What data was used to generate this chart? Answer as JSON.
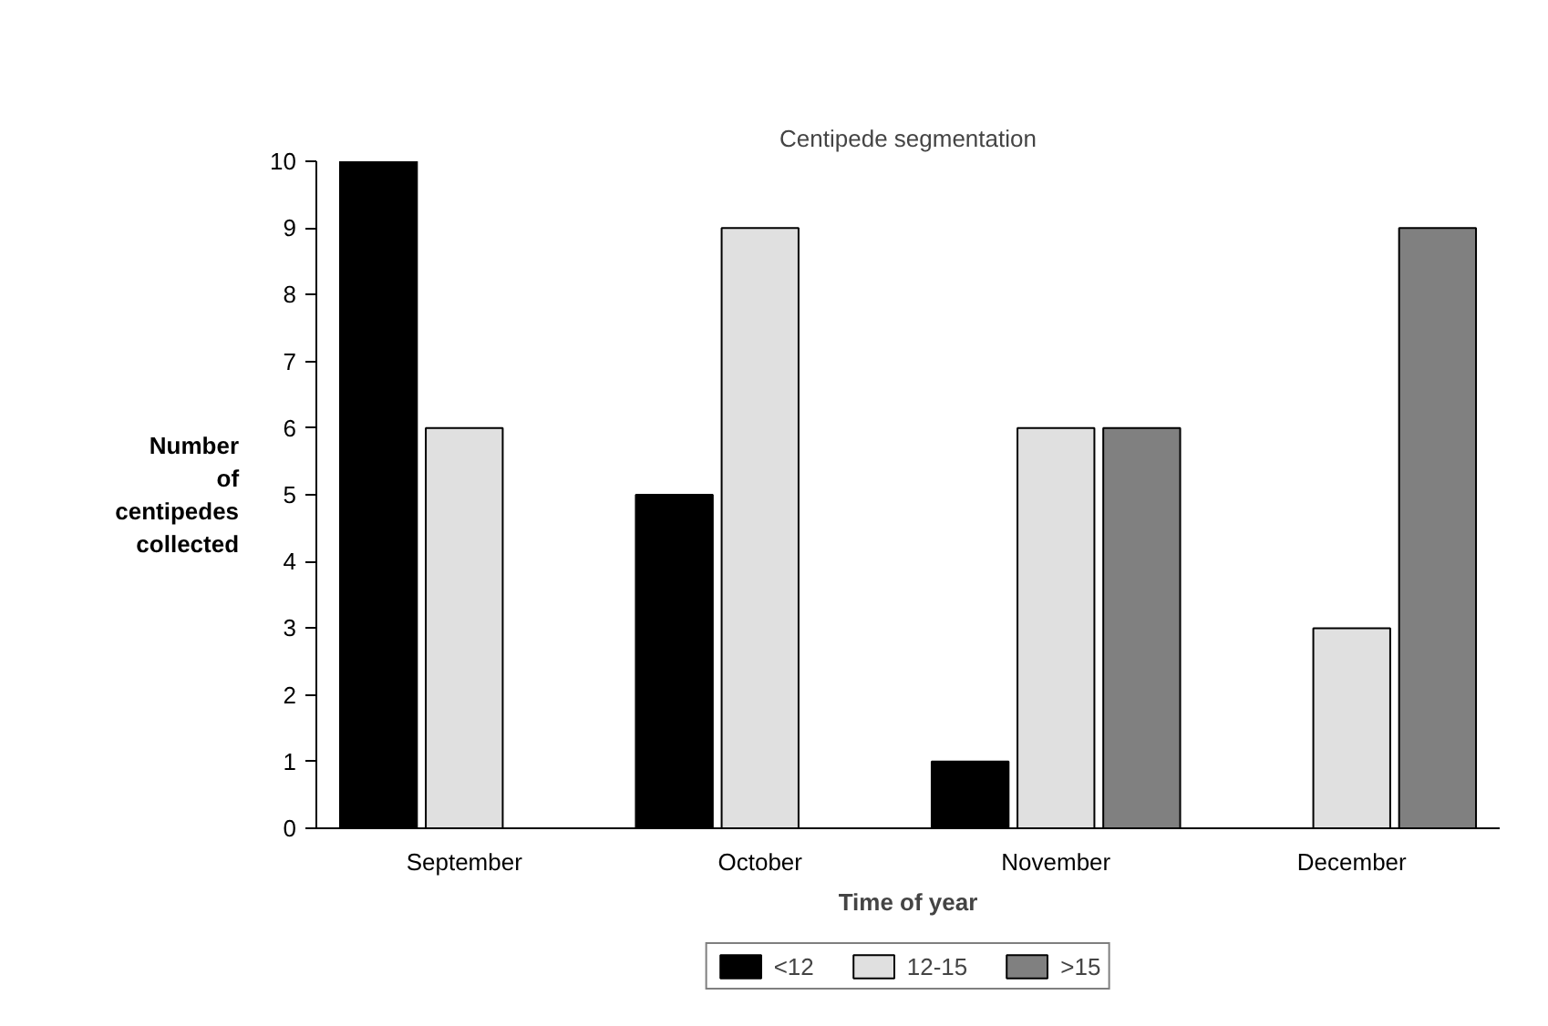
{
  "chart_data": {
    "type": "bar",
    "title": "Centipede segmentation",
    "xlabel": "Time of year",
    "ylabel": "Number of centipedes collected",
    "categories": [
      "September",
      "October",
      "November",
      "December"
    ],
    "series": [
      {
        "name": "<12",
        "color": "#000000",
        "values": [
          10,
          5,
          1,
          null
        ]
      },
      {
        "name": "12-15",
        "color": "#e0e0e0",
        "values": [
          6,
          9,
          6,
          3
        ]
      },
      {
        "name": ">15",
        "color": "#808080",
        "values": [
          null,
          null,
          6,
          9
        ]
      }
    ],
    "ylim": [
      0,
      10
    ],
    "yticks": [
      0,
      1,
      2,
      3,
      4,
      5,
      6,
      7,
      8,
      9,
      10
    ],
    "grid": false,
    "legend": "bottom"
  }
}
